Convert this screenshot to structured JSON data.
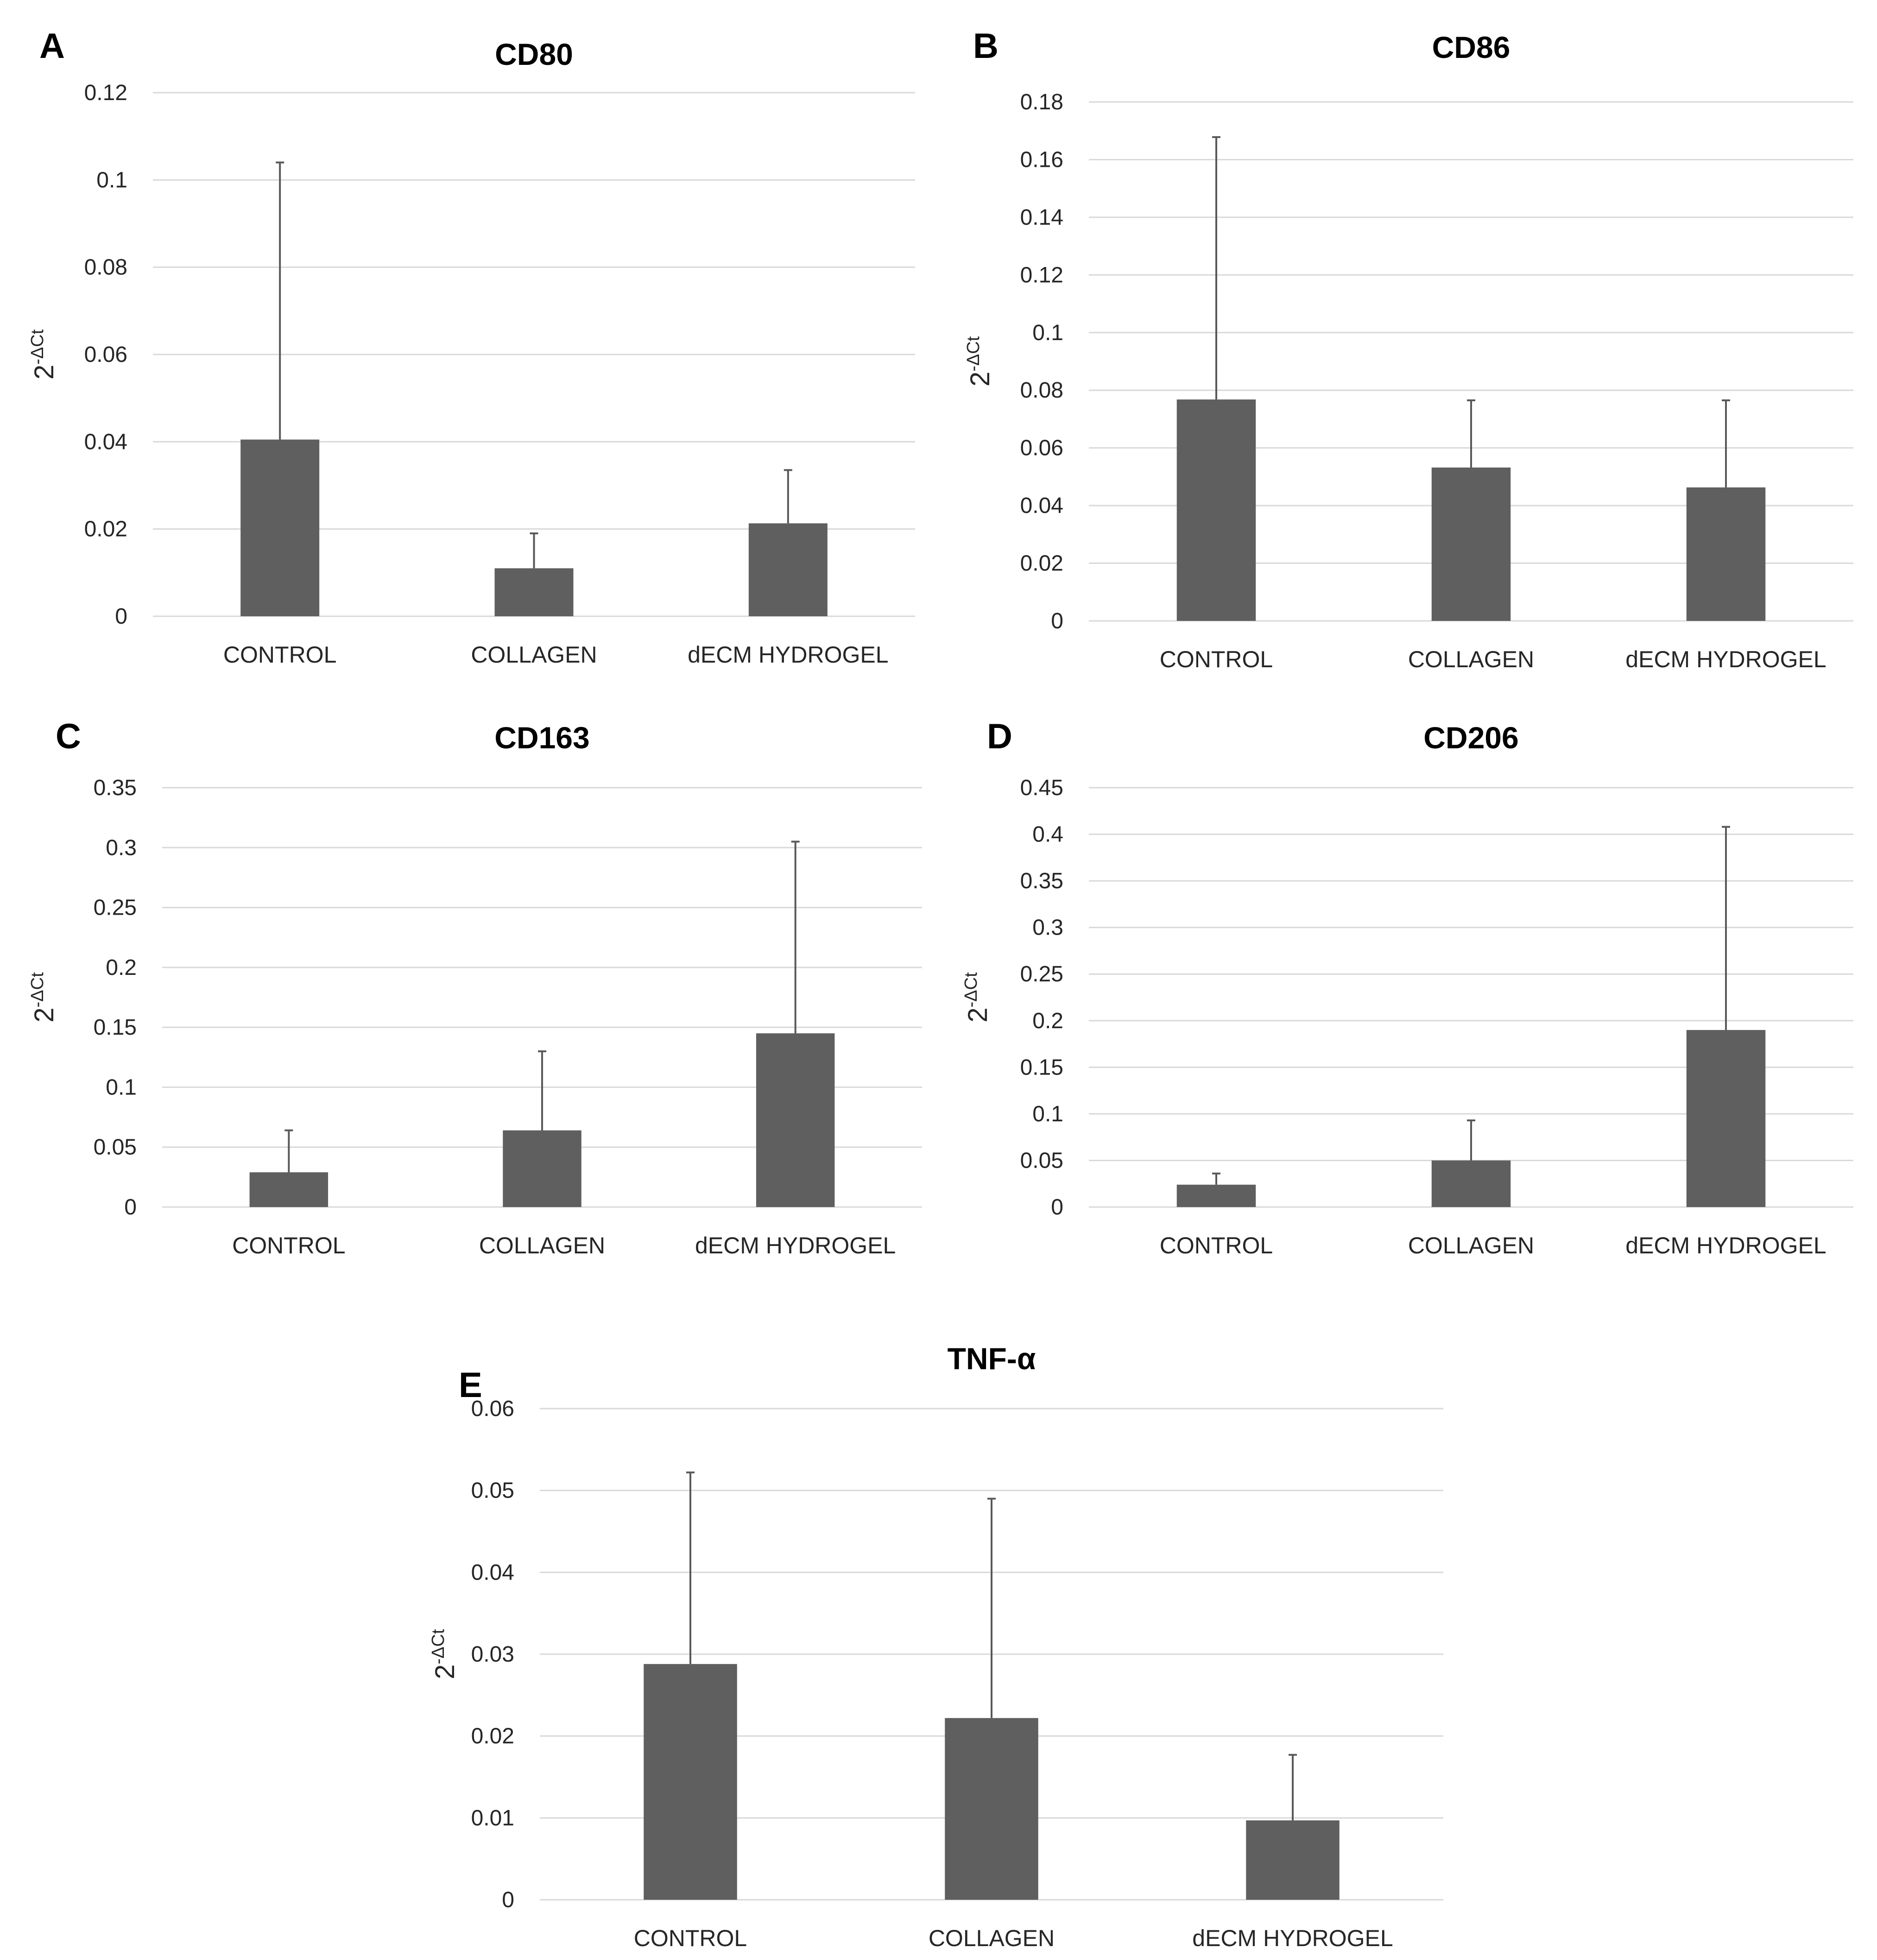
{
  "figure": {
    "bar_color": "#5f5f5f",
    "grid_color": "#d9d9d9"
  },
  "chart_data": [
    {
      "type": "bar",
      "panel": "A",
      "title": "CD80",
      "ylabel": "2-ΔCt",
      "ylabel_base": "2",
      "ylabel_exponent": "-ΔCt",
      "xlabel": "",
      "categories": [
        "CONTROL",
        "COLLAGEN",
        "dECM HYDROGEL"
      ],
      "values": [
        0.0405,
        0.011,
        0.0213
      ],
      "error_upper": [
        0.104,
        0.019,
        0.0335
      ],
      "ylim": [
        0,
        0.12
      ],
      "yticks": [
        0,
        0.02,
        0.04,
        0.06,
        0.08,
        0.1,
        0.12
      ],
      "ytick_labels": [
        "0",
        "0.02",
        "0.04",
        "0.06",
        "0.08",
        "0.1",
        "0.12"
      ],
      "grid": true
    },
    {
      "type": "bar",
      "panel": "B",
      "title": "CD86",
      "ylabel": "2-ΔCt",
      "ylabel_base": "2",
      "ylabel_exponent": "-ΔCt",
      "xlabel": "",
      "categories": [
        "CONTROL",
        "COLLAGEN",
        "dECM HYDROGEL"
      ],
      "values": [
        0.0768,
        0.0532,
        0.0463
      ],
      "error_upper": [
        0.1678,
        0.0765,
        0.0765
      ],
      "ylim": [
        0,
        0.18
      ],
      "yticks": [
        0,
        0.02,
        0.04,
        0.06,
        0.08,
        0.1,
        0.12,
        0.14,
        0.16,
        0.18
      ],
      "ytick_labels": [
        "0",
        "0.02",
        "0.04",
        "0.06",
        "0.08",
        "0.1",
        "0.12",
        "0.14",
        "0.16",
        "0.18"
      ],
      "grid": true
    },
    {
      "type": "bar",
      "panel": "C",
      "title": "CD163",
      "ylabel": "2-ΔCt",
      "ylabel_base": "2",
      "ylabel_exponent": "-ΔCt",
      "xlabel": "",
      "categories": [
        "CONTROL",
        "COLLAGEN",
        "dECM HYDROGEL"
      ],
      "values": [
        0.029,
        0.064,
        0.145
      ],
      "error_upper": [
        0.064,
        0.13,
        0.305
      ],
      "ylim": [
        0,
        0.35
      ],
      "yticks": [
        0,
        0.05,
        0.1,
        0.15,
        0.2,
        0.25,
        0.3,
        0.35
      ],
      "ytick_labels": [
        "0",
        "0.05",
        "0.1",
        "0.15",
        "0.2",
        "0.25",
        "0.3",
        "0.35"
      ],
      "grid": true
    },
    {
      "type": "bar",
      "panel": "D",
      "title": "CD206",
      "ylabel": "2-ΔCt",
      "ylabel_base": "2",
      "ylabel_exponent": "-ΔCt",
      "xlabel": "",
      "categories": [
        "CONTROL",
        "COLLAGEN",
        "dECM HYDROGEL"
      ],
      "values": [
        0.024,
        0.05,
        0.19
      ],
      "error_upper": [
        0.036,
        0.093,
        0.408
      ],
      "ylim": [
        0,
        0.45
      ],
      "yticks": [
        0,
        0.05,
        0.1,
        0.15,
        0.2,
        0.25,
        0.3,
        0.35,
        0.4,
        0.45
      ],
      "ytick_labels": [
        "0",
        "0.05",
        "0.1",
        "0.15",
        "0.2",
        "0.25",
        "0.3",
        "0.35",
        "0.4",
        "0.45"
      ],
      "grid": true
    },
    {
      "type": "bar",
      "panel": "E",
      "title": "TNF-α",
      "ylabel": "2-ΔCt",
      "ylabel_base": "2",
      "ylabel_exponent": "-ΔCt",
      "xlabel": "",
      "categories": [
        "CONTROL",
        "COLLAGEN",
        "dECM HYDROGEL"
      ],
      "values": [
        0.0288,
        0.0222,
        0.0097
      ],
      "error_upper": [
        0.0522,
        0.049,
        0.0177
      ],
      "ylim": [
        0,
        0.06
      ],
      "yticks": [
        0,
        0.01,
        0.02,
        0.03,
        0.04,
        0.05,
        0.06
      ],
      "ytick_labels": [
        "0",
        "0.01",
        "0.02",
        "0.03",
        "0.04",
        "0.05",
        "0.06"
      ],
      "grid": true
    }
  ]
}
